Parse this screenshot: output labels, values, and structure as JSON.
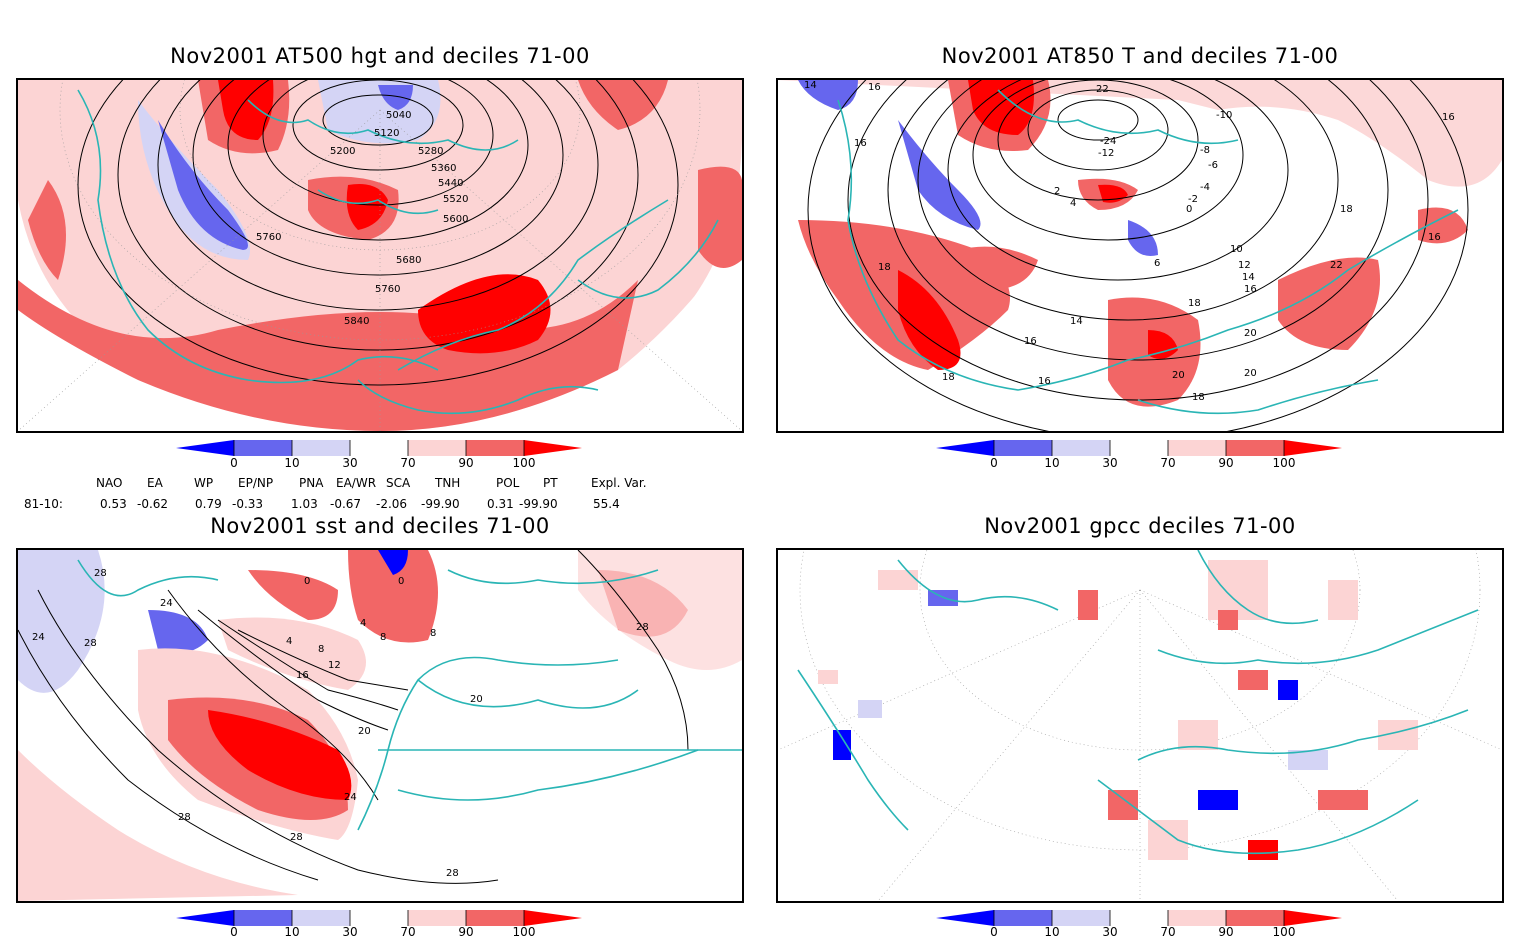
{
  "panels": [
    {
      "title": "Nov2001 AT500 hgt and deciles 71-00",
      "contour_labels": [
        "5040",
        "5120",
        "5200",
        "5280",
        "5360",
        "5440",
        "5520",
        "5600",
        "5680",
        "5760",
        "5760",
        "5840"
      ]
    },
    {
      "title": "Nov2001 AT850 T and deciles 71-00",
      "contour_labels": [
        "14",
        "16",
        "16",
        "22",
        "-10",
        "-8",
        "-6",
        "-4",
        "-2",
        "0",
        "2",
        "4",
        "6",
        "10",
        "12",
        "14",
        "16",
        "16",
        "18",
        "18",
        "18",
        "16",
        "14",
        "16",
        "18",
        "20",
        "20",
        "20",
        "22",
        "16",
        "18",
        "-24",
        "-12"
      ]
    },
    {
      "title": "Nov2001 sst and deciles 71-00",
      "contour_labels": [
        "28",
        "24",
        "24",
        "28",
        "0",
        "0",
        "4",
        "4",
        "8",
        "8",
        "12",
        "16",
        "20",
        "20",
        "24",
        "28",
        "28",
        "28",
        "28",
        "8"
      ]
    },
    {
      "title": "Nov2001 gpcc deciles 71-00",
      "contour_labels": []
    }
  ],
  "colorbar": {
    "ticks": [
      "0",
      "10",
      "30",
      "70",
      "90",
      "100"
    ],
    "colors": {
      "c0": "#0000ff",
      "c1": "#6666ee",
      "c2": "#d4d4f5",
      "c3": "#ffffff",
      "c4": "#fcd4d4",
      "c5": "#f26666",
      "c6": "#ff0000"
    }
  },
  "indices": {
    "headers": [
      "NAO",
      "EA",
      "WP",
      "EP/NP",
      "PNA",
      "EA/WR",
      "SCA",
      "TNH",
      "POL",
      "PT",
      "Expl. Var."
    ],
    "row_label": "81-10:",
    "values": [
      "0.53",
      "-0.62",
      "0.79",
      "-0.33",
      "1.03",
      "-0.67",
      "-2.06",
      "-99.90",
      "0.31",
      "-99.90",
      "55.4"
    ]
  },
  "colors": {
    "coast": "#2ab5b5",
    "grid": "#999999",
    "pos_strong": "#ff0000",
    "pos_mid": "#f26666",
    "pos_light": "#fcd4d4",
    "neg_strong": "#0000ff",
    "neg_mid": "#6666ee",
    "neg_light": "#d4d4f5"
  }
}
